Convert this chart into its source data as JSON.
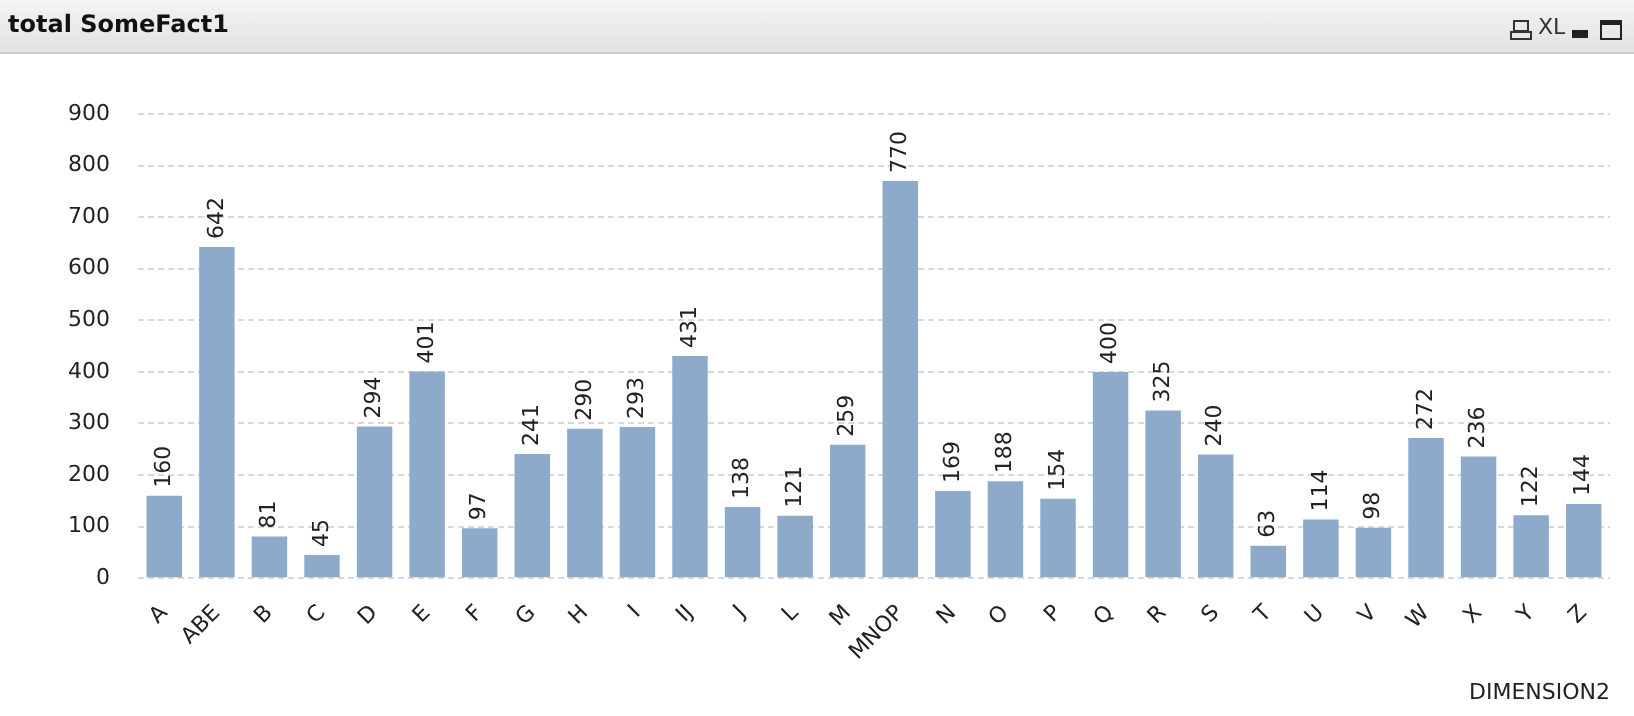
{
  "chart_data": {
    "type": "bar",
    "title": "total SomeFact1",
    "xlabel": "DIMENSION2",
    "annotations": [
      "XL"
    ],
    "categories": [
      "A",
      "ABE",
      "B",
      "C",
      "D",
      "E",
      "F",
      "G",
      "H",
      "I",
      "IJ",
      "J",
      "L",
      "M",
      "MNOP",
      "N",
      "O",
      "P",
      "Q",
      "R",
      "S",
      "T",
      "U",
      "V",
      "W",
      "X",
      "Y",
      "Z"
    ],
    "values": [
      160,
      642,
      81,
      45,
      294,
      401,
      97,
      241,
      290,
      293,
      431,
      138,
      121,
      259,
      770,
      169,
      188,
      154,
      400,
      325,
      240,
      63,
      114,
      98,
      272,
      236,
      122,
      144
    ],
    "color": "#8eaacb",
    "ylim": [
      0,
      900
    ],
    "yticks": [
      0,
      100,
      200,
      300,
      400,
      500,
      600,
      700,
      800,
      900
    ],
    "grid": "y",
    "data_labels": true,
    "legend": false
  }
}
